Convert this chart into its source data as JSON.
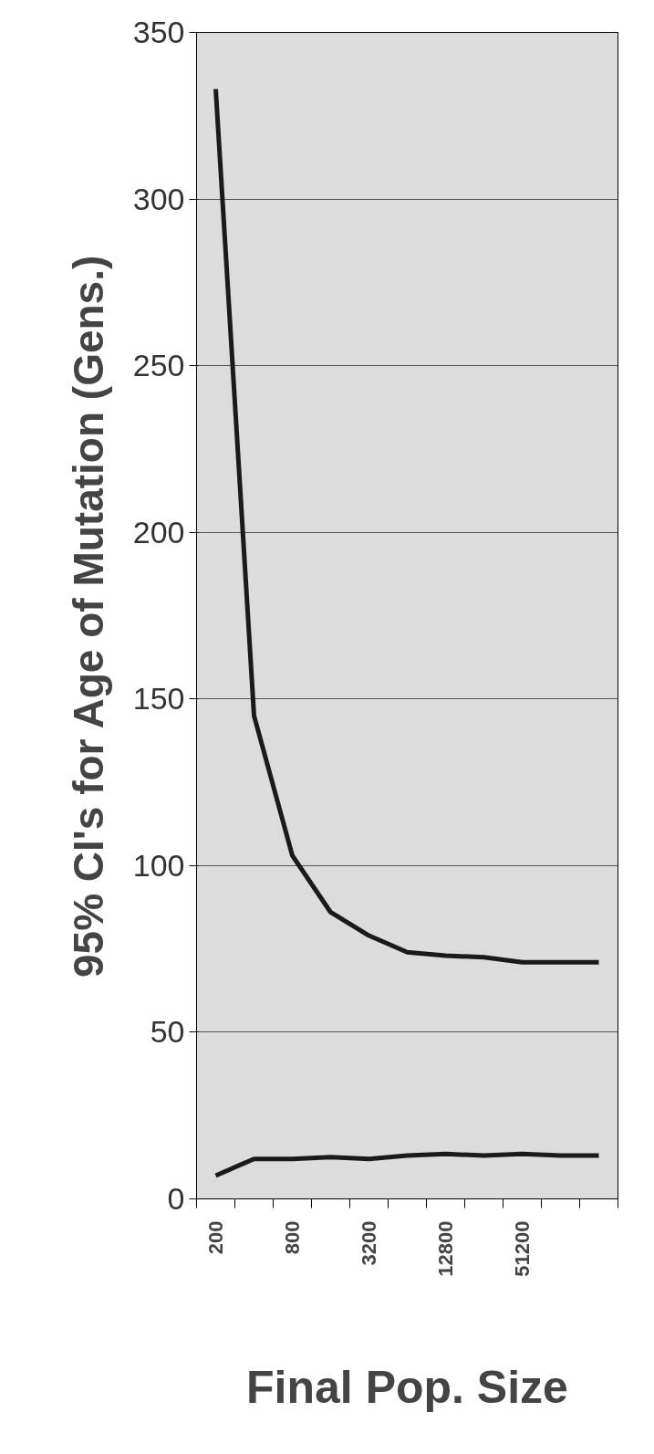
{
  "chart_data": {
    "type": "line",
    "xlabel": "Final Pop. Size",
    "ylabel": "95% CI's for Age of Mutation (Gens.)",
    "categories": [
      "200",
      null,
      "800",
      null,
      "3200",
      null,
      "12800",
      null,
      "51200",
      null,
      null
    ],
    "series": [
      {
        "color": "#1a1a1a",
        "values": [
          333,
          145,
          103,
          86,
          79,
          74,
          73,
          72.5,
          71,
          71,
          71
        ]
      },
      {
        "color": "#1a1a1a",
        "values": [
          7,
          12,
          12,
          12.5,
          12,
          13,
          13.5,
          13,
          13.5,
          13,
          13
        ]
      }
    ],
    "ylim": [
      0,
      350
    ],
    "yticks": [
      0,
      50,
      100,
      150,
      200,
      250,
      300,
      350
    ],
    "grid": "y",
    "marker": "none",
    "line_style": "solid"
  }
}
